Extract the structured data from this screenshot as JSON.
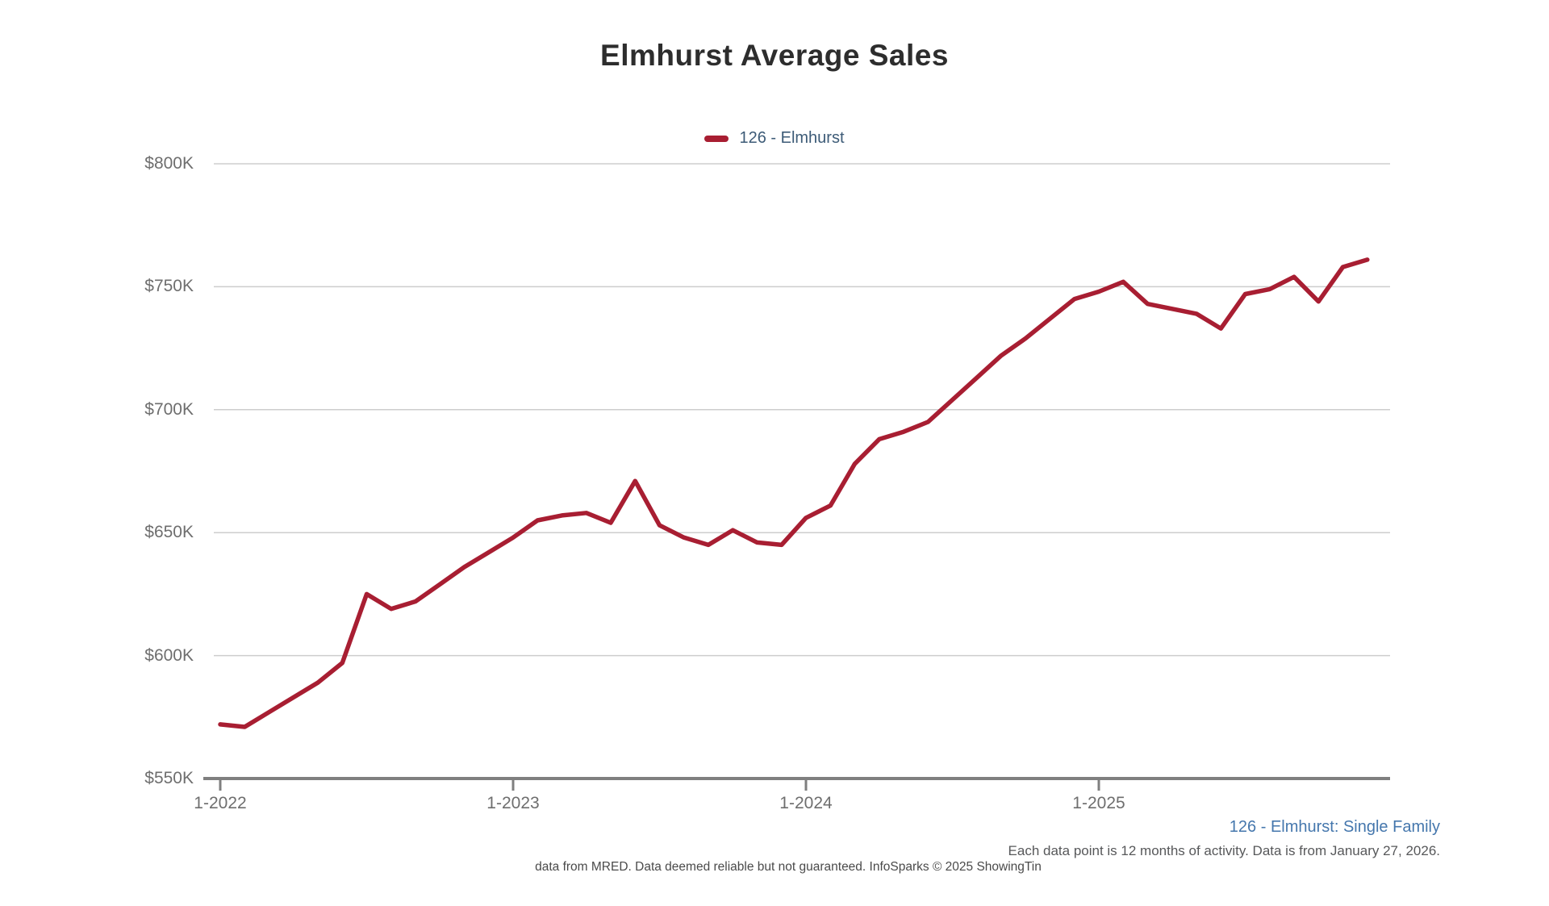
{
  "title": "Elmhurst Average Sales",
  "legend": {
    "label": "126 - Elmhurst",
    "marker_color": "#A81E32"
  },
  "footer": {
    "series_note": "126 - Elmhurst: Single Family",
    "activity_note": "Each data point is 12 months of activity. Data is from January 27, 2026.",
    "attribution": "data from MRED. Data deemed reliable but not guaranteed. InfoSparks © 2025 ShowingTin"
  },
  "colors": {
    "line": "#A81E32",
    "legend_text": "#3D5B77",
    "footer_blue": "#4577AD",
    "axis_text": "#6E6E6E",
    "gridline": "#CDCDCD",
    "axis_line": "#7F7F7F"
  },
  "chart_data": {
    "type": "line",
    "title": "Elmhurst Average Sales",
    "series": [
      {
        "name": "126 - Elmhurst",
        "color": "#A81E32",
        "values_unit": "USD thousands",
        "values": [
          572,
          571,
          577,
          583,
          589,
          597,
          625,
          619,
          622,
          629,
          636,
          642,
          648,
          655,
          657,
          658,
          654,
          671,
          653,
          648,
          645,
          651,
          646,
          645,
          656,
          661,
          678,
          688,
          691,
          695,
          704,
          713,
          722,
          729,
          737,
          745,
          748,
          752,
          743,
          741,
          739,
          733,
          747,
          749,
          754,
          744,
          758,
          761
        ]
      }
    ],
    "x": [
      "1-2022",
      "2-2022",
      "3-2022",
      "4-2022",
      "5-2022",
      "6-2022",
      "7-2022",
      "8-2022",
      "9-2022",
      "10-2022",
      "11-2022",
      "12-2022",
      "1-2023",
      "2-2023",
      "3-2023",
      "4-2023",
      "5-2023",
      "6-2023",
      "7-2023",
      "8-2023",
      "9-2023",
      "10-2023",
      "11-2023",
      "12-2023",
      "1-2024",
      "2-2024",
      "3-2024",
      "4-2024",
      "5-2024",
      "6-2024",
      "7-2024",
      "8-2024",
      "9-2024",
      "10-2024",
      "11-2024",
      "12-2024",
      "1-2025",
      "2-2025",
      "3-2025",
      "4-2025",
      "5-2025",
      "6-2025",
      "7-2025",
      "8-2025",
      "9-2025",
      "10-2025",
      "11-2025",
      "12-2025"
    ],
    "x_tick_labels": [
      "1-2022",
      "1-2023",
      "1-2024",
      "1-2025"
    ],
    "x_tick_indices": [
      0,
      12,
      24,
      36
    ],
    "y_ticks": [
      "$550K",
      "$600K",
      "$650K",
      "$700K",
      "$750K",
      "$800K"
    ],
    "y_tick_values": [
      550,
      600,
      650,
      700,
      750,
      800
    ],
    "ylim": [
      550,
      800
    ],
    "grid": true,
    "legend_position": "top-center"
  }
}
